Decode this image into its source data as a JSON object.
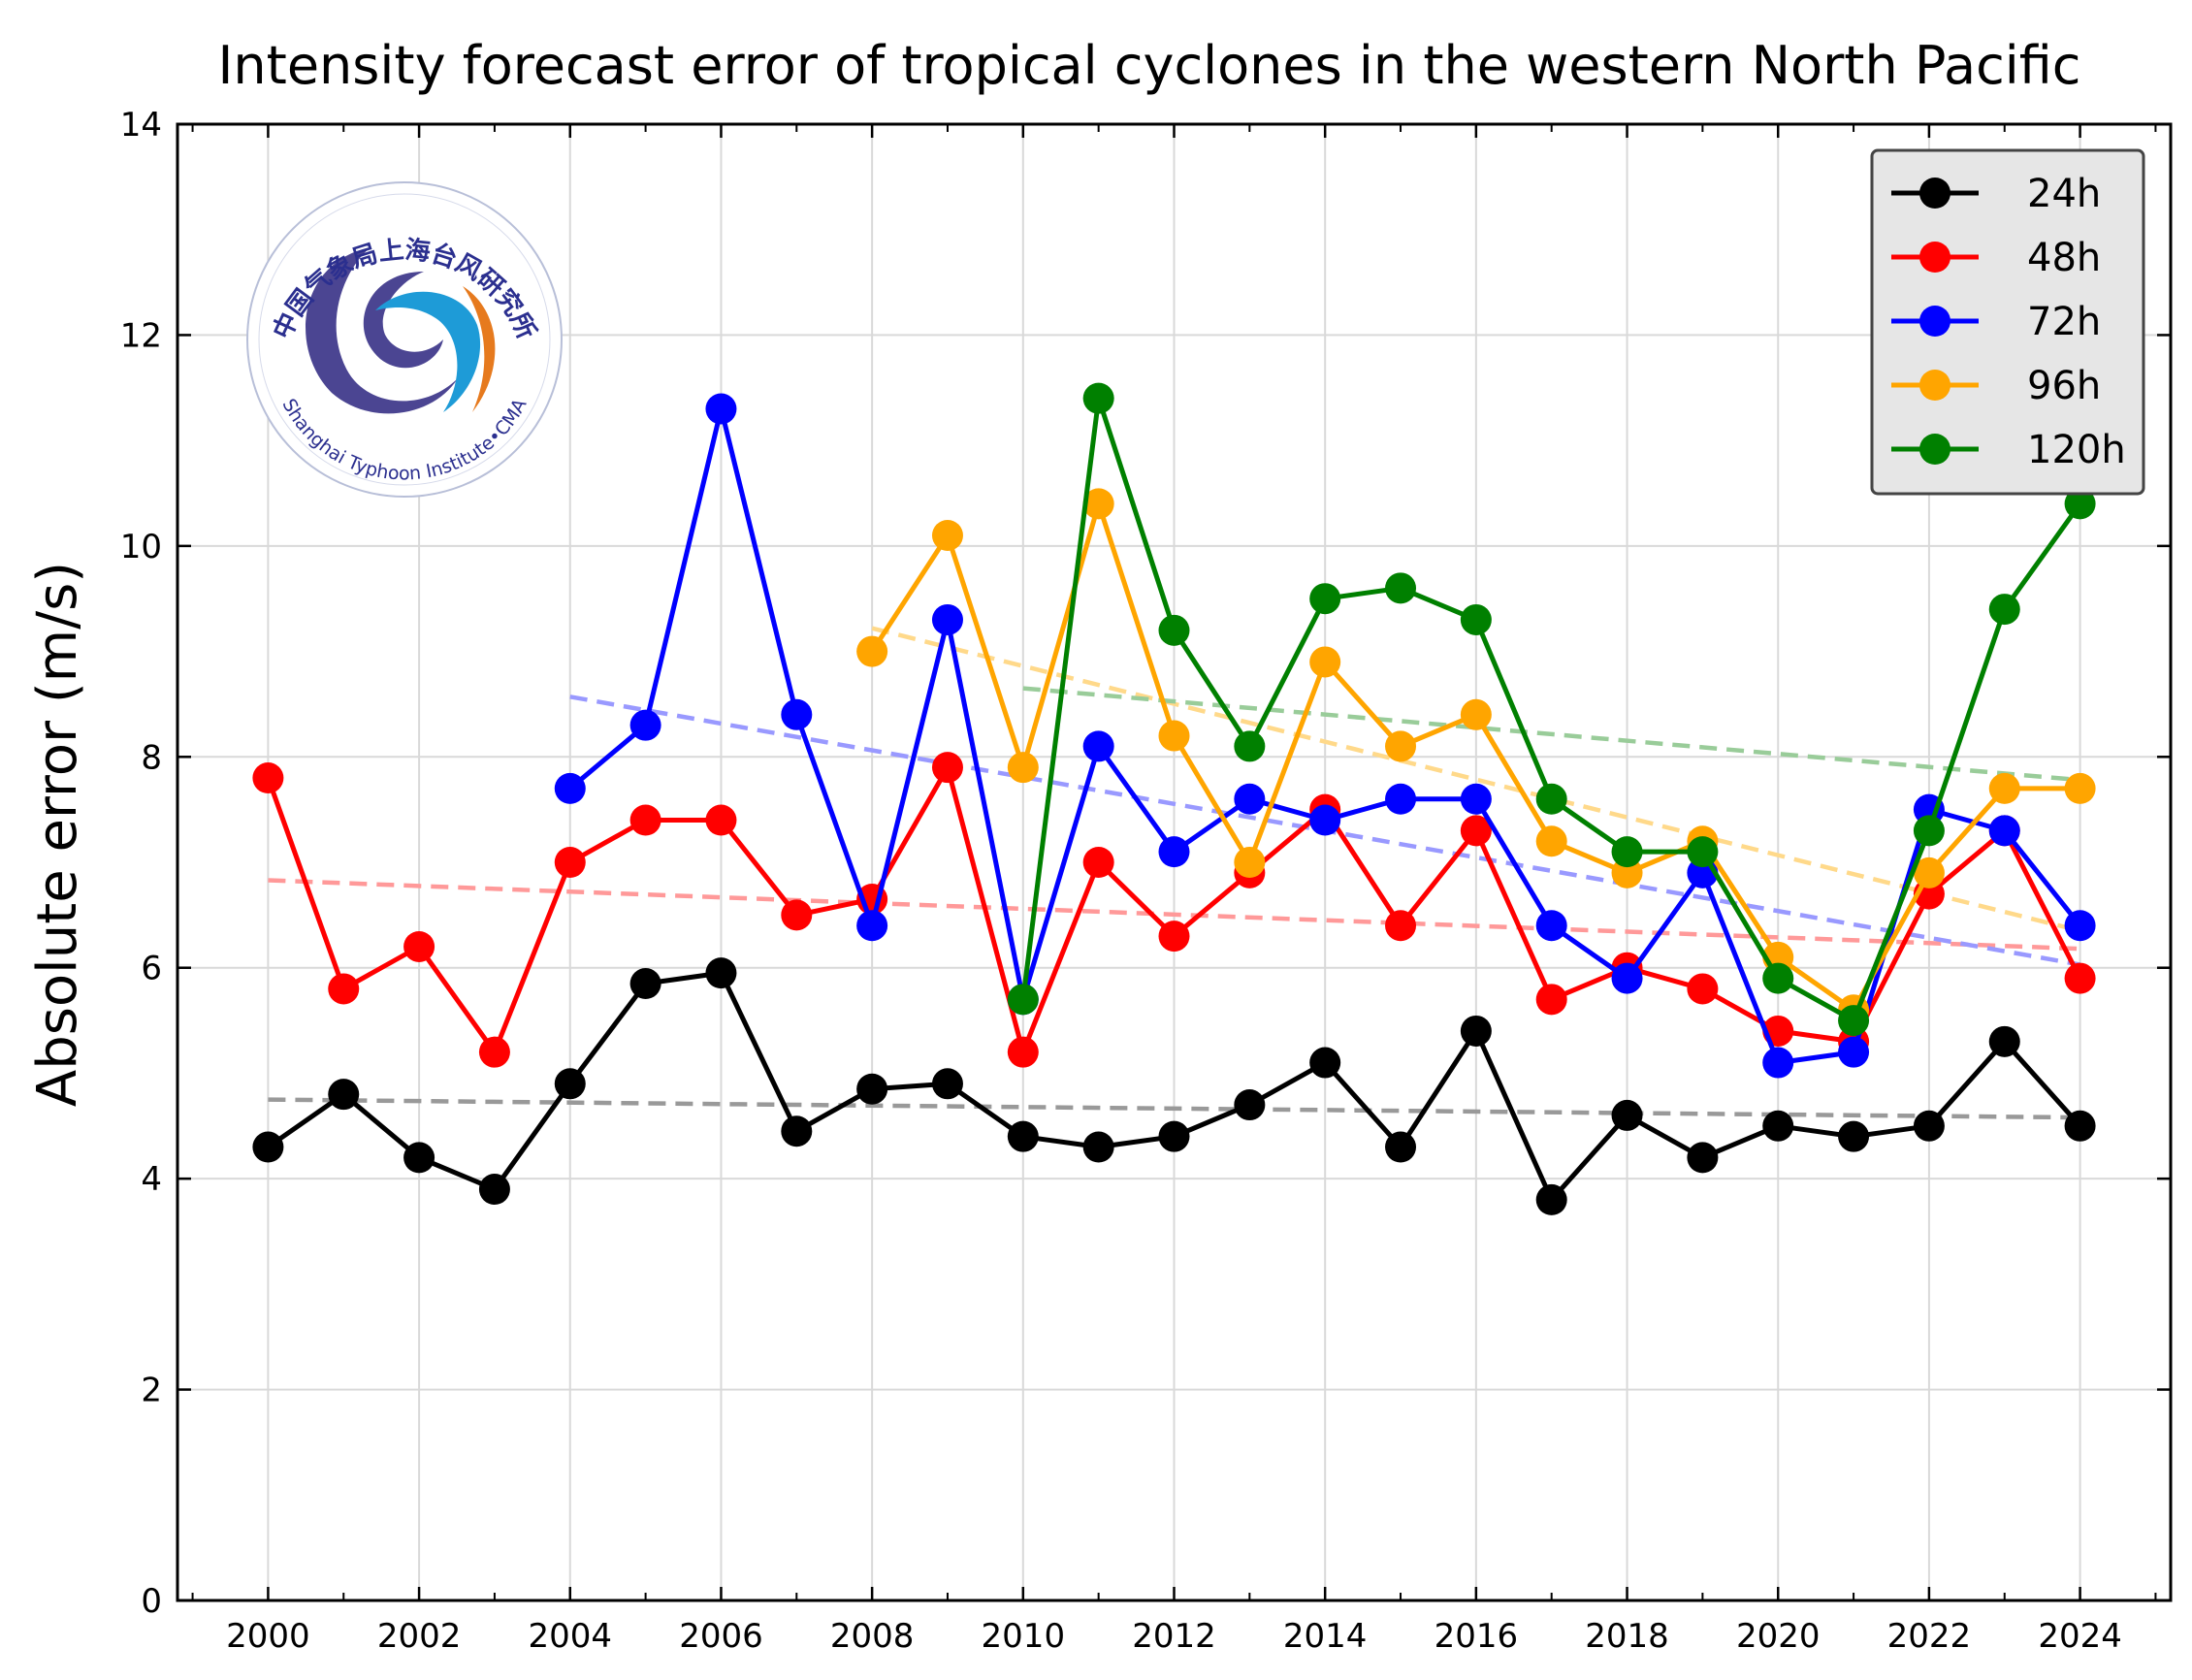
{
  "chart_data": {
    "type": "line",
    "title": "Intensity forecast error of tropical cyclones in the western North Pacific",
    "xlabel": "",
    "ylabel": "Absolute error (m/s)",
    "xlim": [
      1998.8,
      2025.2
    ],
    "ylim": [
      0,
      14
    ],
    "x_ticks": [
      2000,
      2002,
      2004,
      2006,
      2008,
      2010,
      2012,
      2014,
      2016,
      2018,
      2020,
      2022,
      2024
    ],
    "y_ticks": [
      0,
      2,
      4,
      6,
      8,
      10,
      12,
      14
    ],
    "grid": true,
    "legend_position": "top-right",
    "series": [
      {
        "name": "24h",
        "color": "#000000",
        "x": [
          2000,
          2001,
          2002,
          2003,
          2004,
          2005,
          2006,
          2007,
          2008,
          2009,
          2010,
          2011,
          2012,
          2013,
          2014,
          2015,
          2016,
          2017,
          2018,
          2019,
          2020,
          2021,
          2022,
          2023,
          2024
        ],
        "values": [
          4.3,
          4.8,
          4.2,
          3.9,
          4.9,
          5.85,
          5.95,
          4.45,
          4.85,
          4.9,
          4.4,
          4.3,
          4.4,
          4.7,
          5.1,
          4.3,
          5.4,
          3.8,
          4.6,
          4.2,
          4.5,
          4.4,
          4.5,
          5.3,
          4.5
        ],
        "trend": {
          "x": [
            2000,
            2024
          ],
          "y": [
            4.75,
            4.58
          ],
          "color": "#999999"
        }
      },
      {
        "name": "48h",
        "color": "#ff0000",
        "x": [
          2000,
          2001,
          2002,
          2003,
          2004,
          2005,
          2006,
          2007,
          2008,
          2009,
          2010,
          2011,
          2012,
          2013,
          2014,
          2015,
          2016,
          2017,
          2018,
          2019,
          2020,
          2021,
          2022,
          2023,
          2024
        ],
        "values": [
          7.8,
          5.8,
          6.2,
          5.2,
          7.0,
          7.4,
          7.4,
          6.5,
          6.65,
          7.9,
          5.2,
          7.0,
          6.3,
          6.9,
          7.5,
          6.4,
          7.3,
          5.7,
          6.0,
          5.8,
          5.4,
          5.3,
          6.7,
          7.3,
          5.9
        ],
        "trend": {
          "x": [
            2000,
            2024
          ],
          "y": [
            6.83,
            6.18
          ],
          "color": "#ff9999"
        }
      },
      {
        "name": "72h",
        "color": "#0000ff",
        "x": [
          2004,
          2005,
          2006,
          2007,
          2008,
          2009,
          2010,
          2011,
          2012,
          2013,
          2014,
          2015,
          2016,
          2017,
          2018,
          2019,
          2020,
          2021,
          2022,
          2023,
          2024
        ],
        "values": [
          7.7,
          8.3,
          11.3,
          8.4,
          6.4,
          9.3,
          5.7,
          8.1,
          7.1,
          7.6,
          7.4,
          7.6,
          7.6,
          6.4,
          5.9,
          6.9,
          5.1,
          5.2,
          7.5,
          7.3,
          6.4
        ],
        "trend": {
          "x": [
            2004,
            2024
          ],
          "y": [
            8.57,
            6.03
          ],
          "color": "#9999ff"
        }
      },
      {
        "name": "96h",
        "color": "#ffa500",
        "x": [
          2008,
          2009,
          2010,
          2011,
          2012,
          2013,
          2014,
          2015,
          2016,
          2017,
          2018,
          2019,
          2020,
          2021,
          2022,
          2023,
          2024
        ],
        "values": [
          9.0,
          10.1,
          7.9,
          10.4,
          8.2,
          7.0,
          8.9,
          8.1,
          8.4,
          7.2,
          6.9,
          7.2,
          6.1,
          5.6,
          6.9,
          7.7,
          7.7
        ],
        "trend": {
          "x": [
            2008,
            2024
          ],
          "y": [
            9.22,
            6.35
          ],
          "color": "#ffd98a"
        }
      },
      {
        "name": "120h",
        "color": "#008000",
        "x": [
          2010,
          2011,
          2012,
          2013,
          2014,
          2015,
          2016,
          2017,
          2018,
          2019,
          2020,
          2021,
          2022,
          2023,
          2024
        ],
        "values": [
          5.7,
          11.4,
          9.2,
          8.1,
          9.5,
          9.6,
          9.3,
          7.6,
          7.1,
          7.1,
          5.9,
          5.5,
          7.3,
          9.4,
          10.4
        ],
        "trend": {
          "x": [
            2010,
            2024
          ],
          "y": [
            8.65,
            7.78
          ],
          "color": "#99cc99"
        }
      }
    ]
  },
  "logo": {
    "chinese_text": "中国气象局上海台风研究所",
    "english_text": "Shanghai Typhoon Institute•CMA"
  }
}
